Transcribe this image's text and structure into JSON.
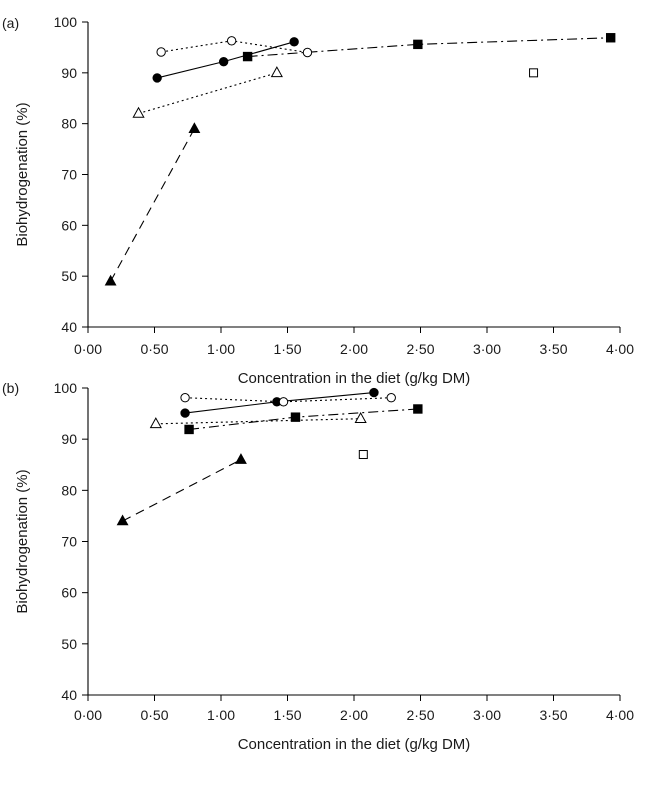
{
  "chart_data": [
    {
      "type": "scatter",
      "panel_label": "(a)",
      "xlabel": "Concentration in the diet (g/kg DM)",
      "ylabel": "Biohydrogenation (%)",
      "xlim": [
        0,
        4
      ],
      "ylim": [
        40,
        100
      ],
      "x_ticks": [
        "0·00",
        "0·50",
        "1·00",
        "1·50",
        "2·00",
        "2·50",
        "3·00",
        "3·50",
        "4·00"
      ],
      "y_ticks": [
        "40",
        "50",
        "60",
        "70",
        "80",
        "90",
        "100"
      ],
      "grid": false,
      "series": [
        {
          "marker": "filled-circle",
          "line": "solid",
          "points": [
            [
              0.52,
              89
            ],
            [
              1.02,
              92.2
            ],
            [
              1.55,
              96.1
            ]
          ]
        },
        {
          "marker": "open-circle",
          "line": "dotted",
          "points": [
            [
              0.55,
              94.1
            ],
            [
              1.08,
              96.3
            ],
            [
              1.65,
              94
            ]
          ]
        },
        {
          "marker": "filled-square",
          "line": "dash-dot",
          "points": [
            [
              1.2,
              93.2
            ],
            [
              2.48,
              95.6
            ],
            [
              3.93,
              96.9
            ]
          ]
        },
        {
          "marker": "open-triangle",
          "line": "dotted",
          "points": [
            [
              0.38,
              82
            ],
            [
              1.42,
              90
            ]
          ]
        },
        {
          "marker": "filled-triangle",
          "line": "dashed",
          "points": [
            [
              0.17,
              49
            ],
            [
              0.8,
              79
            ]
          ]
        },
        {
          "marker": "open-square",
          "line": "none",
          "points": [
            [
              3.35,
              90
            ]
          ]
        }
      ]
    },
    {
      "type": "scatter",
      "panel_label": "(b)",
      "xlabel": "Concentration in the diet (g/kg DM)",
      "ylabel": "Biohydrogenation (%)",
      "xlim": [
        0,
        4
      ],
      "ylim": [
        40,
        100
      ],
      "x_ticks": [
        "0·00",
        "0·50",
        "1·00",
        "1·50",
        "2·00",
        "2·50",
        "3·00",
        "3·50",
        "4·00"
      ],
      "y_ticks": [
        "40",
        "50",
        "60",
        "70",
        "80",
        "90",
        "100"
      ],
      "grid": false,
      "series": [
        {
          "marker": "filled-circle",
          "line": "solid",
          "points": [
            [
              0.73,
              95.1
            ],
            [
              1.42,
              97.3
            ],
            [
              2.15,
              99.1
            ]
          ]
        },
        {
          "marker": "open-circle",
          "line": "dotted",
          "points": [
            [
              0.73,
              98.1
            ],
            [
              1.47,
              97.3
            ],
            [
              2.28,
              98.1
            ]
          ]
        },
        {
          "marker": "filled-square",
          "line": "dash-dot",
          "points": [
            [
              0.76,
              91.9
            ],
            [
              1.56,
              94.3
            ],
            [
              2.48,
              95.9
            ]
          ]
        },
        {
          "marker": "open-triangle",
          "line": "dotted",
          "points": [
            [
              0.51,
              93
            ],
            [
              2.05,
              94
            ]
          ]
        },
        {
          "marker": "filled-triangle",
          "line": "dashed",
          "points": [
            [
              0.26,
              74
            ],
            [
              1.15,
              86
            ]
          ]
        },
        {
          "marker": "open-square",
          "line": "none",
          "points": [
            [
              2.07,
              87
            ]
          ]
        }
      ]
    }
  ]
}
